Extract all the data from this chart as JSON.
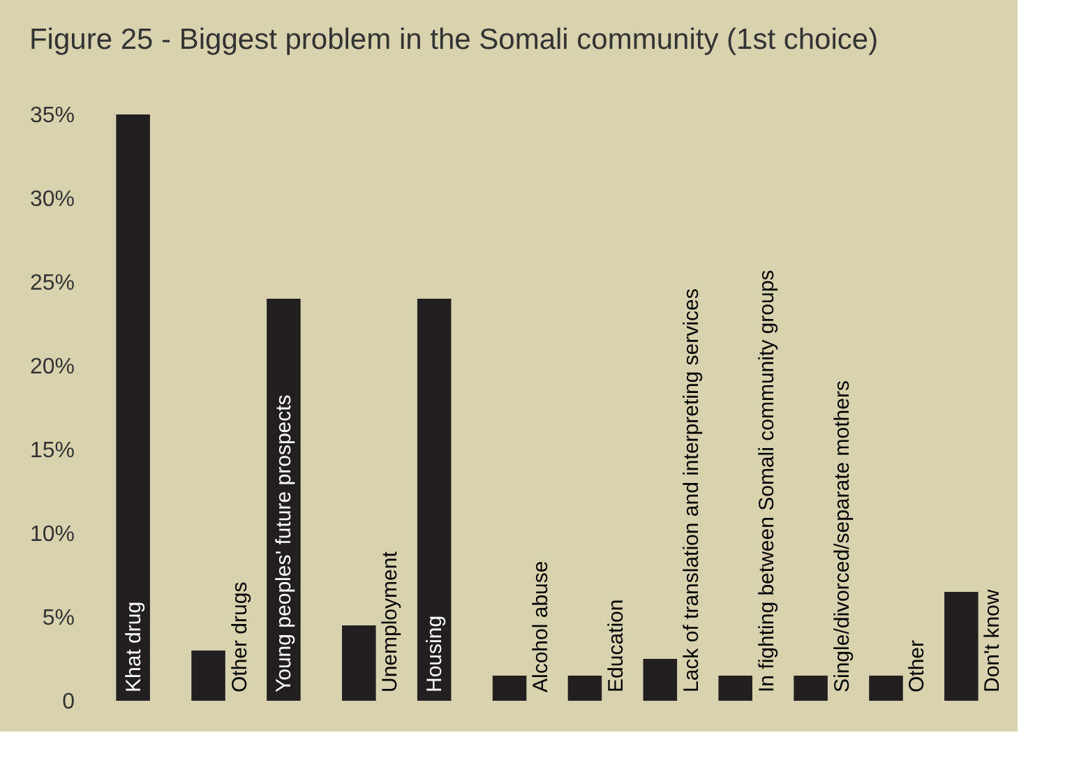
{
  "chart_data": {
    "type": "bar",
    "title": "Figure 25 - Biggest problem in the Somali community (1st choice)",
    "categories": [
      "Khat drug",
      "Other drugs",
      "Young peoples' future prospects",
      "Unemployment",
      "Housing",
      "Alcohol abuse",
      "Education",
      "Lack of translation and interpreting services",
      "In fighting between Somali community groups",
      "Single/divorced/separate mothers",
      "Other",
      "Don't know"
    ],
    "values": [
      35,
      3,
      24,
      4.5,
      24,
      1.5,
      1.5,
      2.5,
      1.5,
      1.5,
      1.5,
      6.5
    ],
    "color": "#231f20",
    "ylim": [
      0,
      35
    ],
    "yticks": [
      {
        "value": 0,
        "label": "0"
      },
      {
        "value": 5,
        "label": "5%"
      },
      {
        "value": 10,
        "label": "10%"
      },
      {
        "value": 15,
        "label": "15%"
      },
      {
        "value": 20,
        "label": "20%"
      },
      {
        "value": 25,
        "label": "25%"
      },
      {
        "value": 30,
        "label": "30%"
      },
      {
        "value": 35,
        "label": "35%"
      }
    ],
    "tick_labels": "y",
    "grid": false
  }
}
